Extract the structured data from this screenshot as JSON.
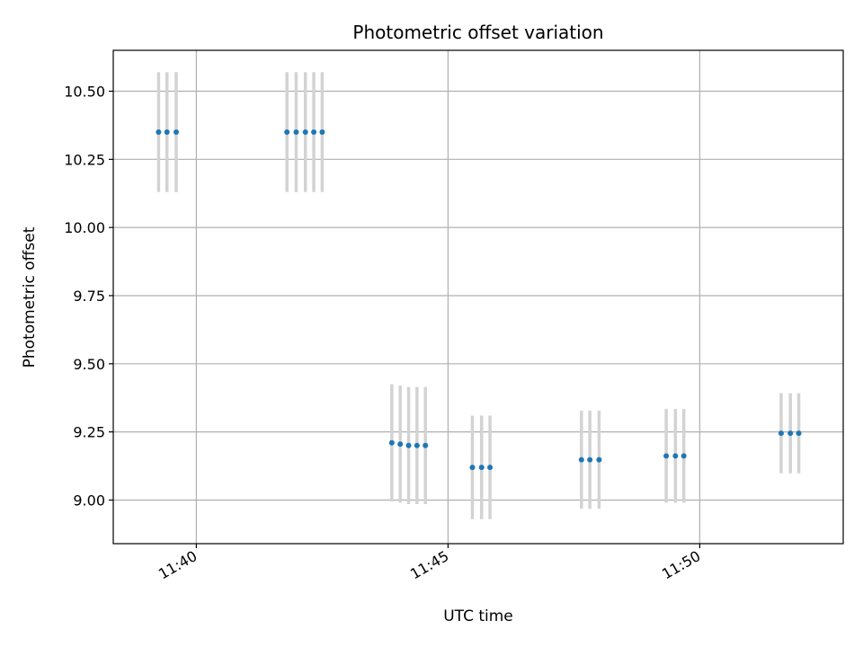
{
  "chart_data": {
    "type": "scatter",
    "title": "Photometric offset variation",
    "xlabel": "UTC time",
    "ylabel": "Photometric offset",
    "x_ticks": [
      "11:40",
      "11:45",
      "11:50"
    ],
    "y_ticks": [
      "9.00",
      "9.25",
      "9.50",
      "9.75",
      "10.00",
      "10.25",
      "10.50"
    ],
    "xlim": [
      "11:38:21",
      "11:52:51"
    ],
    "ylim": [
      8.84,
      10.65
    ],
    "grid": true,
    "marker_color": "#1f77b4",
    "errorbar_color": "#d3d3d3",
    "series": [
      {
        "points": [
          {
            "x": "11:39:15",
            "y": 10.35,
            "err": 0.22
          },
          {
            "x": "11:39:25",
            "y": 10.35,
            "err": 0.22
          },
          {
            "x": "11:39:36",
            "y": 10.35,
            "err": 0.22
          },
          {
            "x": "11:41:48",
            "y": 10.35,
            "err": 0.22
          },
          {
            "x": "11:41:59",
            "y": 10.35,
            "err": 0.22
          },
          {
            "x": "11:42:10",
            "y": 10.35,
            "err": 0.22
          },
          {
            "x": "11:42:20",
            "y": 10.35,
            "err": 0.22
          },
          {
            "x": "11:42:30",
            "y": 10.35,
            "err": 0.22
          },
          {
            "x": "11:43:53",
            "y": 9.21,
            "err": 0.215
          },
          {
            "x": "11:44:03",
            "y": 9.205,
            "err": 0.215
          },
          {
            "x": "11:44:13",
            "y": 9.2,
            "err": 0.215
          },
          {
            "x": "11:44:23",
            "y": 9.2,
            "err": 0.215
          },
          {
            "x": "11:44:33",
            "y": 9.2,
            "err": 0.215
          },
          {
            "x": "11:45:29",
            "y": 9.12,
            "err": 0.19
          },
          {
            "x": "11:45:40",
            "y": 9.12,
            "err": 0.19
          },
          {
            "x": "11:45:50",
            "y": 9.12,
            "err": 0.19
          },
          {
            "x": "11:47:39",
            "y": 9.148,
            "err": 0.18
          },
          {
            "x": "11:47:49",
            "y": 9.148,
            "err": 0.18
          },
          {
            "x": "11:48:00",
            "y": 9.148,
            "err": 0.18
          },
          {
            "x": "11:49:20",
            "y": 9.162,
            "err": 0.172
          },
          {
            "x": "11:49:31",
            "y": 9.162,
            "err": 0.172
          },
          {
            "x": "11:49:41",
            "y": 9.162,
            "err": 0.172
          },
          {
            "x": "11:51:37",
            "y": 9.245,
            "err": 0.147
          },
          {
            "x": "11:51:48",
            "y": 9.245,
            "err": 0.147
          },
          {
            "x": "11:51:58",
            "y": 9.245,
            "err": 0.147
          }
        ]
      }
    ]
  }
}
